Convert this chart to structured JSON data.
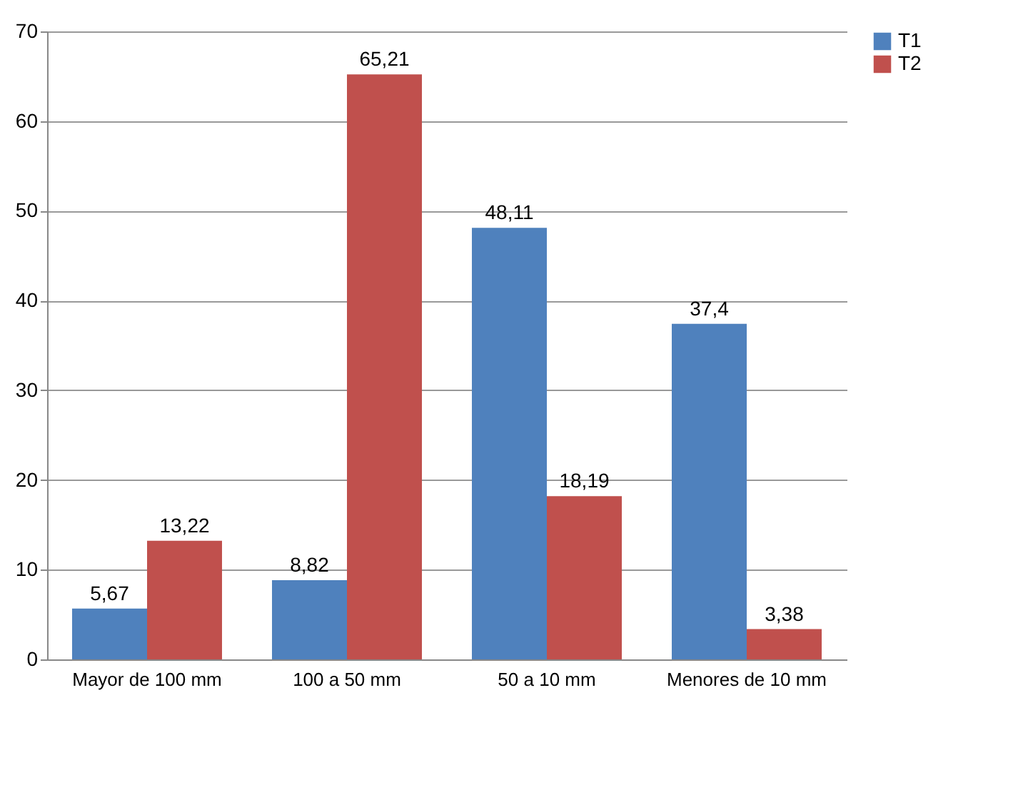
{
  "chart_data": {
    "type": "bar",
    "categories": [
      "Mayor de 100 mm",
      "100 a 50 mm",
      "50 a 10 mm",
      "Menores de 10 mm"
    ],
    "series": [
      {
        "name": "T1",
        "color": "#4f81bd",
        "values": [
          5.67,
          8.82,
          48.11,
          37.4
        ],
        "value_labels": [
          "5,67",
          "8,82",
          "48,11",
          "37,4"
        ]
      },
      {
        "name": "T2",
        "color": "#c0504d",
        "values": [
          13.22,
          65.21,
          18.19,
          3.38
        ],
        "value_labels": [
          "13,22",
          "65,21",
          "18,19",
          "3,38"
        ]
      }
    ],
    "ylim": [
      0,
      70
    ],
    "yticks": [
      0,
      10,
      20,
      30,
      40,
      50,
      60,
      70
    ],
    "grid": "y",
    "legend": "right"
  }
}
